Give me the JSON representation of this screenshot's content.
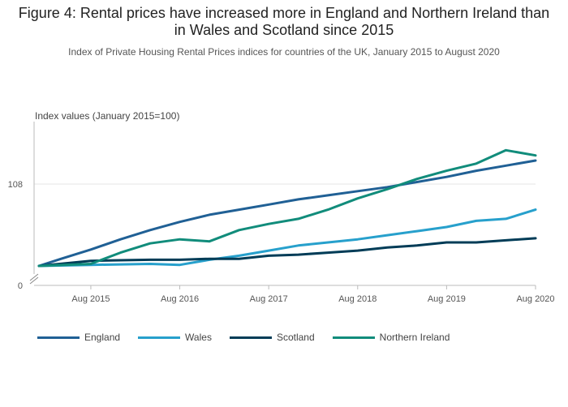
{
  "header": {
    "title": "Figure 4: Rental prices have increased more in England and Northern Ireland than in Wales and Scotland since 2015",
    "subtitle": "Index of Private Housing Rental Prices indices for countries of the UK, January 2015 to August 2020"
  },
  "chart_data": {
    "type": "line",
    "title": "Figure 4: Rental prices have increased more in England and Northern Ireland than in Wales and Scotland since 2015",
    "subtitle": "Index of Private Housing Rental Prices indices for countries of the UK, January 2015 to August 2020",
    "ylabel": "Index values (January 2015=100)",
    "xlabel": "",
    "x_start": "2015-01",
    "x_end": "2020-08",
    "x_ticks": [
      "Aug 2015",
      "Aug 2016",
      "Aug 2017",
      "Aug 2018",
      "Aug 2019",
      "Aug 2020"
    ],
    "y_ticks": [
      0,
      108
    ],
    "y_axis_broken": true,
    "grid": "horizontal",
    "legend_position": "bottom",
    "series": [
      {
        "name": "England",
        "color": "#206095",
        "points": [
          [
            "2015-01",
            100.0
          ],
          [
            "2015-04",
            100.7
          ],
          [
            "2015-08",
            101.6
          ],
          [
            "2015-12",
            102.6
          ],
          [
            "2016-04",
            103.5
          ],
          [
            "2016-08",
            104.3
          ],
          [
            "2016-12",
            105.0
          ],
          [
            "2017-04",
            105.5
          ],
          [
            "2017-08",
            106.0
          ],
          [
            "2017-12",
            106.5
          ],
          [
            "2018-04",
            106.9
          ],
          [
            "2018-08",
            107.3
          ],
          [
            "2018-12",
            107.7
          ],
          [
            "2019-04",
            108.2
          ],
          [
            "2019-08",
            108.7
          ],
          [
            "2019-12",
            109.3
          ],
          [
            "2020-04",
            109.8
          ],
          [
            "2020-08",
            110.3
          ]
        ]
      },
      {
        "name": "Wales",
        "color": "#27A0CC",
        "points": [
          [
            "2015-01",
            100.0
          ],
          [
            "2015-08",
            100.1
          ],
          [
            "2016-04",
            100.2
          ],
          [
            "2016-08",
            100.1
          ],
          [
            "2016-12",
            100.6
          ],
          [
            "2017-04",
            101.0
          ],
          [
            "2017-08",
            101.5
          ],
          [
            "2017-12",
            102.0
          ],
          [
            "2018-04",
            102.3
          ],
          [
            "2018-08",
            102.6
          ],
          [
            "2018-12",
            103.0
          ],
          [
            "2019-04",
            103.4
          ],
          [
            "2019-08",
            103.8
          ],
          [
            "2019-12",
            104.4
          ],
          [
            "2020-04",
            104.6
          ],
          [
            "2020-08",
            105.5
          ]
        ]
      },
      {
        "name": "Scotland",
        "color": "#003C57",
        "points": [
          [
            "2015-01",
            100.0
          ],
          [
            "2015-08",
            100.5
          ],
          [
            "2016-04",
            100.6
          ],
          [
            "2016-08",
            100.6
          ],
          [
            "2016-12",
            100.7
          ],
          [
            "2017-04",
            100.7
          ],
          [
            "2017-08",
            101.0
          ],
          [
            "2017-12",
            101.1
          ],
          [
            "2018-04",
            101.3
          ],
          [
            "2018-08",
            101.5
          ],
          [
            "2018-12",
            101.8
          ],
          [
            "2019-04",
            102.0
          ],
          [
            "2019-08",
            102.3
          ],
          [
            "2019-12",
            102.3
          ],
          [
            "2020-04",
            102.5
          ],
          [
            "2020-08",
            102.7
          ]
        ]
      },
      {
        "name": "Northern Ireland",
        "color": "#118C7B",
        "points": [
          [
            "2015-01",
            100.0
          ],
          [
            "2015-08",
            100.2
          ],
          [
            "2015-12",
            101.3
          ],
          [
            "2016-04",
            102.2
          ],
          [
            "2016-08",
            102.6
          ],
          [
            "2016-12",
            102.4
          ],
          [
            "2017-04",
            103.5
          ],
          [
            "2017-08",
            104.1
          ],
          [
            "2017-12",
            104.6
          ],
          [
            "2018-04",
            105.5
          ],
          [
            "2018-08",
            106.6
          ],
          [
            "2018-12",
            107.5
          ],
          [
            "2019-04",
            108.5
          ],
          [
            "2019-08",
            109.3
          ],
          [
            "2019-12",
            110.0
          ],
          [
            "2020-04",
            111.3
          ],
          [
            "2020-08",
            110.8
          ]
        ]
      }
    ]
  }
}
